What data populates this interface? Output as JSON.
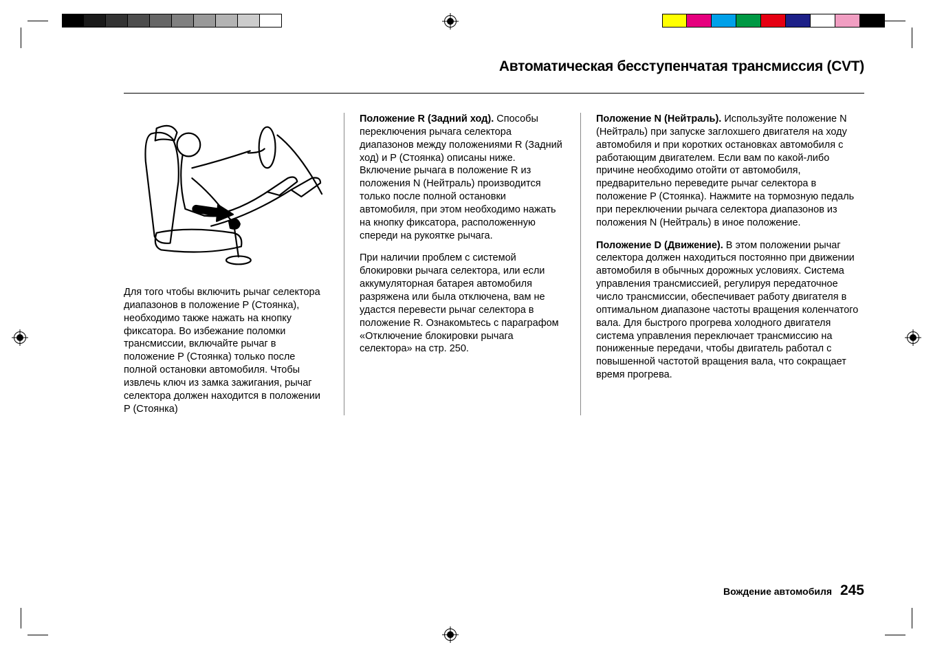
{
  "printmarks": {
    "gray_shades": [
      "#000000",
      "#1a1a1a",
      "#333333",
      "#4d4d4d",
      "#666666",
      "#808080",
      "#999999",
      "#b3b3b3",
      "#cccccc",
      "#ffffff"
    ],
    "gray_border": "#000000",
    "color_bars": [
      "#ffff00",
      "#e6007e",
      "#00a0e9",
      "#009944",
      "#e60012",
      "#1d2088",
      "#ffffff",
      "#f19ec2",
      "#000000"
    ],
    "color_border": "#000000"
  },
  "header": {
    "title": "Автоматическая бесступенчатая трансмиссия (CVT)"
  },
  "col1": {
    "illustration_alt": "driver-in-seat-shifter-diagram",
    "p1": "Для того чтобы включить рычаг селектора диапазонов в положение P (Стоянка), необходимо также нажать на кнопку фиксатора. Во избежание поломки трансмиссии, включайте рычаг в положение P (Стоянка) только после полной остановки автомобиля. Чтобы извлечь ключ из замка зажигания, рычаг селектора должен находится в положении P (Стоянка)"
  },
  "col2": {
    "h1_bold": "Положение R (Задний ход).",
    "h1_rest": " Способы переключения рычага селектора диапазонов между положениями R (Задний ход) и P (Стоянка) описаны ниже. Включение рычага в положение R из положения N (Нейтраль) производится только после полной остановки автомобиля, при этом необходимо нажать на кнопку фиксатора, расположенную спереди на рукоятке рычага.",
    "p2": "При наличии проблем с системой блокировки рычага селектора, или если аккумуляторная батарея автомобиля разряжена или была отключена, вам не удастся перевести рычаг селектора в положение R. Ознакомьтесь с параграфом «Отключение блокировки рычага селектора» на стр. 250."
  },
  "col3": {
    "h1_bold": "Положение N (Нейтраль).",
    "h1_rest": " Используйте положение N (Нейтраль) при запуске заглохшего двигателя на ходу автомобиля и при коротких остановках автомобиля с работающим двигателем. Если вам по какой-либо причине необходимо отойти от автомобиля, предварительно переведите рычаг селектора в положение P (Стоянка). Нажмите на тормозную педаль при переключении рычага селектора диапазонов из положения N (Нейтраль) в иное положение.",
    "h2_bold": "Положение D (Движение).",
    "h2_rest": " В этом положении рычаг селектора должен находиться постоянно при движении автомобиля в обычных дорожных условиях. Система управления трансмиссией, регулируя передаточное число трансмиссии, обеспечивает работу двигателя в оптимальном диапазоне частоты вращения коленчатого вала. Для быстрого прогрева холодного двигателя система управления переключает трансмиссию на пониженные передачи, чтобы двигатель работал с повышенной частотой вращения вала, что сокращает время прогрева."
  },
  "footer": {
    "section": "Вождение автомобиля",
    "page_number": "245"
  }
}
